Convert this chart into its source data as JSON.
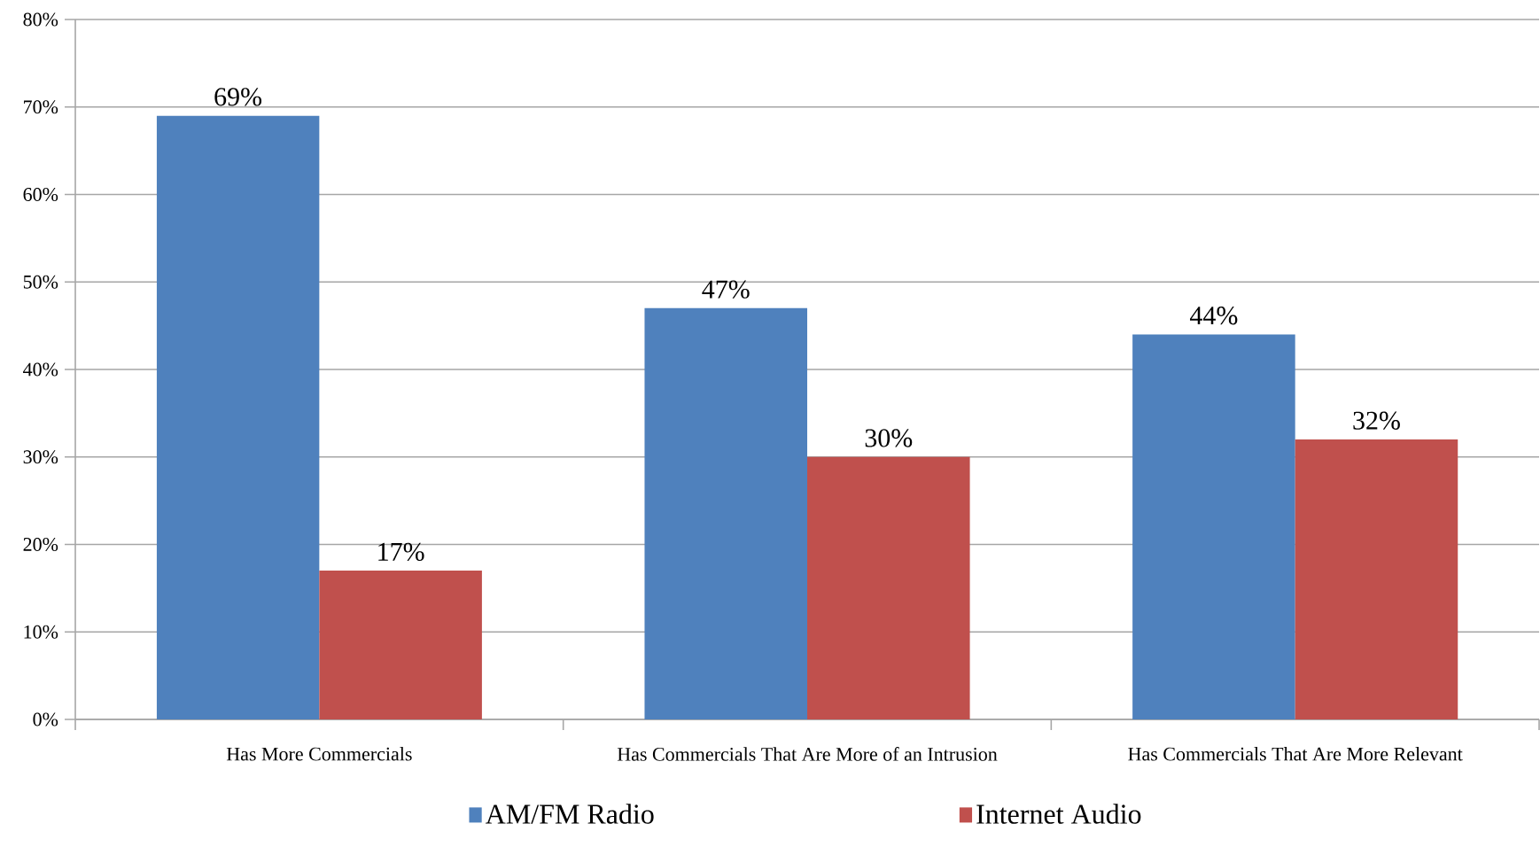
{
  "chart_data": {
    "type": "bar",
    "categories": [
      "Has More Commercials",
      "Has Commercials That Are More of an Intrusion",
      "Has Commercials That Are More Relevant"
    ],
    "series": [
      {
        "name": "AM/FM Radio",
        "color": "#4f81bd",
        "values": [
          69,
          47,
          44
        ],
        "value_labels": [
          "69%",
          "47%",
          "44%"
        ]
      },
      {
        "name": "Internet Audio",
        "color": "#c0504d",
        "values": [
          17,
          30,
          32
        ],
        "value_labels": [
          "17%",
          "30%",
          "32%"
        ]
      }
    ],
    "ylim": [
      0,
      80
    ],
    "yticks": [
      {
        "value": 0,
        "label": "0%"
      },
      {
        "value": 10,
        "label": "10%"
      },
      {
        "value": 20,
        "label": "20%"
      },
      {
        "value": 30,
        "label": "30%"
      },
      {
        "value": 40,
        "label": "40%"
      },
      {
        "value": 50,
        "label": "50%"
      },
      {
        "value": 60,
        "label": "60%"
      },
      {
        "value": 70,
        "label": "70%"
      },
      {
        "value": 80,
        "label": "80%"
      }
    ],
    "grid": "y",
    "legend": "bottom"
  }
}
